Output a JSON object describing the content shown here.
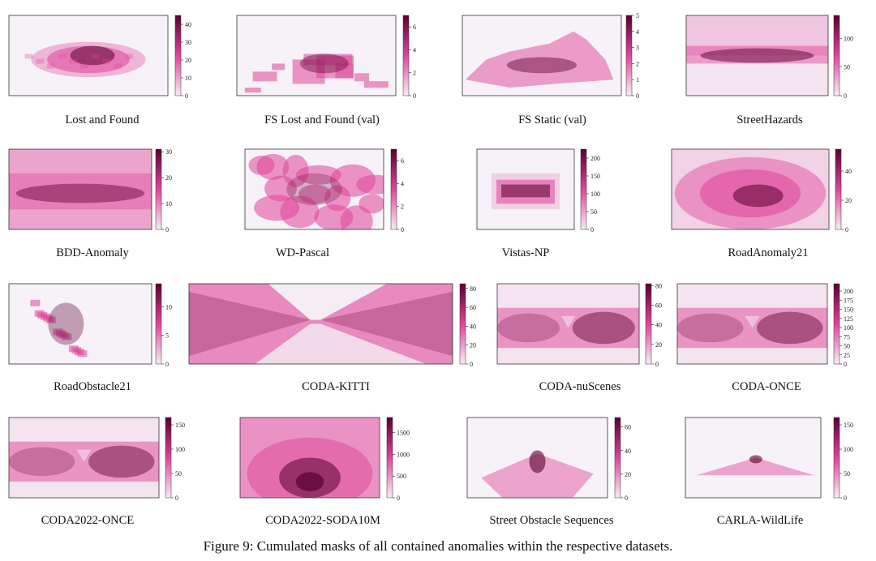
{
  "caption": "Figure 9: Cumulated masks of all contained anomalies within the respective datasets.",
  "colormap": {
    "low": "#f4eef4",
    "mid": "#e0449a",
    "high": "#5a0030",
    "frame": "#333333"
  },
  "panels": [
    {
      "label": "Lost and Found",
      "ticks": [
        "0",
        "10",
        "20",
        "30",
        "40"
      ],
      "vmax": 45,
      "pattern": "cloud_center"
    },
    {
      "label": "FS Lost and Found (val)",
      "ticks": [
        "0",
        "2",
        "4",
        "6"
      ],
      "vmax": 7,
      "pattern": "patches"
    },
    {
      "label": "FS Static (val)",
      "ticks": [
        "0",
        "1",
        "2",
        "3",
        "4",
        "5"
      ],
      "vmax": 5,
      "pattern": "static"
    },
    {
      "label": "StreetHazards",
      "ticks": [
        "0",
        "50",
        "100"
      ],
      "vmax": 140,
      "pattern": "band_top"
    },
    {
      "label": "BDD-Anomaly",
      "ticks": [
        "0",
        "10",
        "20",
        "30"
      ],
      "vmax": 31,
      "pattern": "full_band"
    },
    {
      "label": "WD-Pascal",
      "ticks": [
        "0",
        "2",
        "4",
        "6"
      ],
      "vmax": 7,
      "pattern": "blobs"
    },
    {
      "label": "Vistas-NP",
      "ticks": [
        "0",
        "50",
        "100",
        "150",
        "200"
      ],
      "vmax": 225,
      "pattern": "rect"
    },
    {
      "label": "RoadAnomaly21",
      "ticks": [
        "0",
        "20",
        "40"
      ],
      "vmax": 55,
      "pattern": "ellipse"
    },
    {
      "label": "RoadObstacle21",
      "ticks": [
        "0",
        "5",
        "10"
      ],
      "vmax": 14,
      "pattern": "scatter_left"
    },
    {
      "label": "CODA-KITTI",
      "ticks": [
        "0",
        "20",
        "40",
        "60",
        "80"
      ],
      "vmax": 85,
      "pattern": "bowtie"
    },
    {
      "label": "CODA-nuScenes",
      "ticks": [
        "0",
        "20",
        "40",
        "60",
        "80"
      ],
      "vmax": 82,
      "pattern": "bowtie_soft"
    },
    {
      "label": "CODA-ONCE",
      "ticks": [
        "0",
        "25",
        "50",
        "75",
        "100",
        "125",
        "150",
        "175",
        "200"
      ],
      "vmax": 220,
      "pattern": "bowtie_soft"
    },
    {
      "label": "CODA2022-ONCE",
      "ticks": [
        "0",
        "50",
        "100",
        "150"
      ],
      "vmax": 165,
      "pattern": "bowtie_soft"
    },
    {
      "label": "CODA2022-SODA10M",
      "ticks": [
        "0",
        "500",
        "1000",
        "1500"
      ],
      "vmax": 1850,
      "pattern": "radial"
    },
    {
      "label": "Street Obstacle Sequences",
      "ticks": [
        "0",
        "20",
        "40",
        "60"
      ],
      "vmax": 68,
      "pattern": "fan"
    },
    {
      "label": "CARLA-WildLife",
      "ticks": [
        "0",
        "50",
        "100",
        "150"
      ],
      "vmax": 165,
      "pattern": "fan_small"
    }
  ]
}
